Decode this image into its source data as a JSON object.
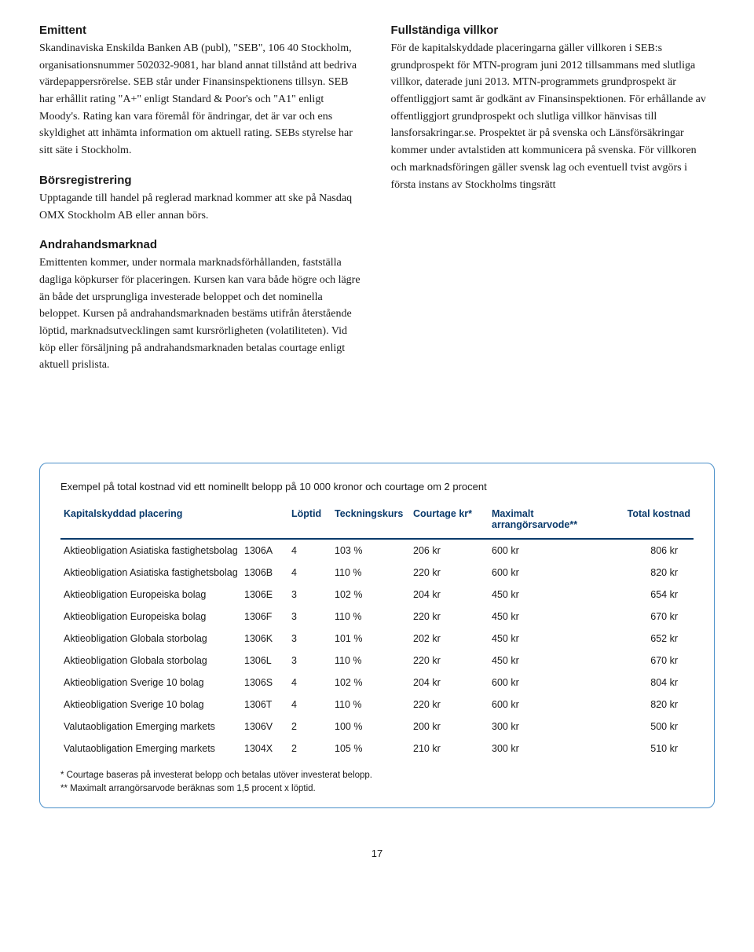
{
  "left": {
    "s1_title": "Emittent",
    "s1_body": "Skandinaviska Enskilda Banken AB (publ), \"SEB\", 106 40 Stockholm, organisationsnummer 502032-9081, har bland annat tillstånd att bedriva värdepappersrörelse. SEB står under Finansinspektionens tillsyn. SEB har erhållit rating \"A+\" enligt Standard & Poor's och \"A1\" enligt Moody's. Rating kan vara föremål för ändringar, det är var och ens skyldighet att inhämta information om aktuell rating. SEBs styrelse har sitt säte i Stockholm.",
    "s2_title": "Börsregistrering",
    "s2_body": "Upptagande till handel på reglerad marknad kommer att ske på Nasdaq OMX Stockholm AB eller annan börs.",
    "s3_title": "Andrahandsmarknad",
    "s3_body": "Emittenten kommer, under normala marknadsförhållanden, fastställa dagliga köpkurser för placeringen. Kursen kan vara både högre och lägre än både det ursprungliga investerade beloppet och det nominella beloppet. Kursen på andrahandsmarknaden bestäms utifrån återstående löptid, marknadsutvecklingen samt kursrörligheten (volatiliteten). Vid köp eller försäljning på andrahandsmarknaden betalas courtage enligt aktuell prislista."
  },
  "right": {
    "s1_title": "Fullständiga villkor",
    "s1_body": "För de kapitalskyddade placeringarna gäller villkoren i SEB:s grundprospekt för MTN-program juni 2012 tillsammans med slutliga villkor, daterade juni 2013. MTN-programmets grundprospekt är offentliggjort samt är godkänt av Finansinspektionen. För erhållande av offentliggjort grundprospekt och slutliga villkor hänvisas till lansforsakringar.se. Prospektet är på svenska och Länsförsäkringar kommer under avtalstiden att kommunicera på svenska. För villkoren och marknadsföringen gäller svensk lag och eventuell tvist avgörs i första instans av Stockholms tingsrätt"
  },
  "table": {
    "caption": "Exempel på total kostnad vid ett nominellt belopp på 10 000 kronor och courtage om 2 procent",
    "headers": {
      "c1": "Kapitalskyddad placering",
      "c2": "",
      "c3": "Löptid",
      "c4": "Teckningskurs",
      "c5": "Courtage kr*",
      "c6a": "Maximalt",
      "c6b": "arrangörsarvode**",
      "c7": "Total kostnad"
    },
    "rows": [
      {
        "name": "Aktieobligation Asiatiska fastighetsbolag",
        "code": "1306A",
        "loptid": "4",
        "teckning": "103 %",
        "courtage": "206 kr",
        "arvode": "600 kr",
        "total": "806 kr"
      },
      {
        "name": "Aktieobligation Asiatiska fastighetsbolag",
        "code": "1306B",
        "loptid": "4",
        "teckning": "110 %",
        "courtage": "220 kr",
        "arvode": "600 kr",
        "total": "820 kr"
      },
      {
        "name": "Aktieobligation Europeiska bolag",
        "code": "1306E",
        "loptid": "3",
        "teckning": "102 %",
        "courtage": "204 kr",
        "arvode": "450 kr",
        "total": "654 kr"
      },
      {
        "name": "Aktieobligation Europeiska bolag",
        "code": "1306F",
        "loptid": "3",
        "teckning": "110 %",
        "courtage": "220 kr",
        "arvode": "450 kr",
        "total": "670 kr"
      },
      {
        "name": "Aktieobligation Globala storbolag",
        "code": "1306K",
        "loptid": "3",
        "teckning": "101 %",
        "courtage": "202 kr",
        "arvode": "450 kr",
        "total": "652 kr"
      },
      {
        "name": "Aktieobligation Globala storbolag",
        "code": "1306L",
        "loptid": "3",
        "teckning": "110 %",
        "courtage": "220 kr",
        "arvode": "450 kr",
        "total": "670 kr"
      },
      {
        "name": "Aktieobligation Sverige 10 bolag",
        "code": "1306S",
        "loptid": "4",
        "teckning": "102 %",
        "courtage": "204 kr",
        "arvode": "600 kr",
        "total": "804 kr"
      },
      {
        "name": "Aktieobligation Sverige 10 bolag",
        "code": "1306T",
        "loptid": "4",
        "teckning": "110 %",
        "courtage": "220 kr",
        "arvode": "600 kr",
        "total": "820 kr"
      },
      {
        "name": "Valutaobligation Emerging markets",
        "code": "1306V",
        "loptid": "2",
        "teckning": "100 %",
        "courtage": "200 kr",
        "arvode": "300 kr",
        "total": "500 kr"
      },
      {
        "name": "Valutaobligation Emerging markets",
        "code": "1304X",
        "loptid": "2",
        "teckning": "105 %",
        "courtage": "210 kr",
        "arvode": "300 kr",
        "total": "510 kr"
      }
    ],
    "footnote1": "* Courtage baseras på investerat belopp och betalas utöver investerat belopp.",
    "footnote2": "** Maximalt arrangörsarvode beräknas som 1,5 procent x löptid."
  },
  "page_number": "17",
  "colors": {
    "border": "#4a8fc9",
    "header_text": "#0a3a6b"
  }
}
